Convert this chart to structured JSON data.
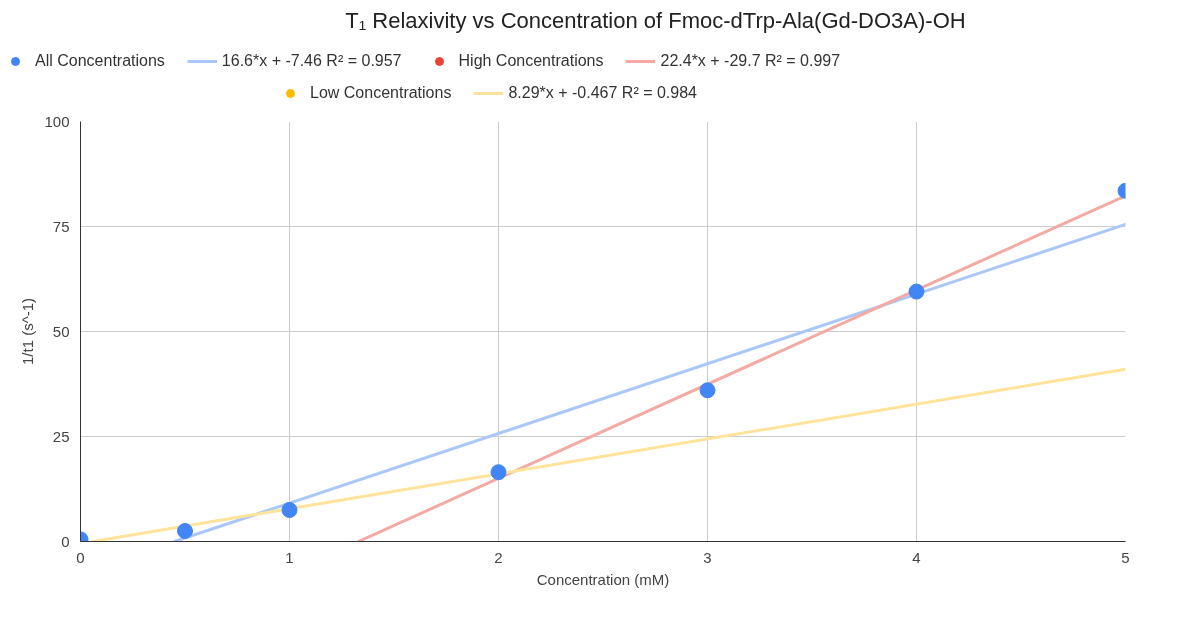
{
  "chart_data": {
    "type": "scatter",
    "title": "T₁ Relaxivity vs Concentration of Fmoc-dTrp-Ala(Gd-DO3A)-OH",
    "xlabel": "Concentration (mM)",
    "ylabel": "1/t1 (s^-1)",
    "x": [
      0,
      0.5,
      1,
      2,
      3,
      4,
      5
    ],
    "series": [
      {
        "name": "All Concentrations",
        "color": "#4285f4",
        "marker": "circle",
        "values": [
          0.5,
          2.5,
          7.5,
          16.5,
          36,
          59.5,
          83.5
        ]
      },
      {
        "name": "16.6*x + -7.46 R² = 0.957",
        "type": "line",
        "color": "#a9c7f7",
        "x": [
          0.45,
          5
        ],
        "values": [
          0,
          75.5
        ]
      },
      {
        "name": "High Concentrations",
        "color": "#ea4335",
        "marker": "circle",
        "values": [
          null,
          null,
          null,
          null,
          null,
          null,
          null
        ]
      },
      {
        "name": "22.4*x + -29.7 R² = 0.997",
        "type": "line",
        "color": "#f3aaa3",
        "x": [
          1.33,
          5
        ],
        "values": [
          0,
          82.3
        ]
      },
      {
        "name": "Low Concentrations",
        "color": "#fbbc04",
        "marker": "circle",
        "values": [
          null,
          null,
          null,
          null,
          null,
          null,
          null
        ]
      },
      {
        "name": "8.29*x + -0.467 R² = 0.984",
        "type": "line",
        "color": "#fde49a",
        "x": [
          0.06,
          5
        ],
        "values": [
          0,
          41
        ]
      }
    ],
    "xlim": [
      0,
      5
    ],
    "xticks": [
      0,
      1,
      2,
      3,
      4,
      5
    ],
    "ylim": [
      0,
      100
    ],
    "yticks": [
      0,
      25,
      50,
      75,
      100
    ],
    "grid": true,
    "legend": "top"
  }
}
